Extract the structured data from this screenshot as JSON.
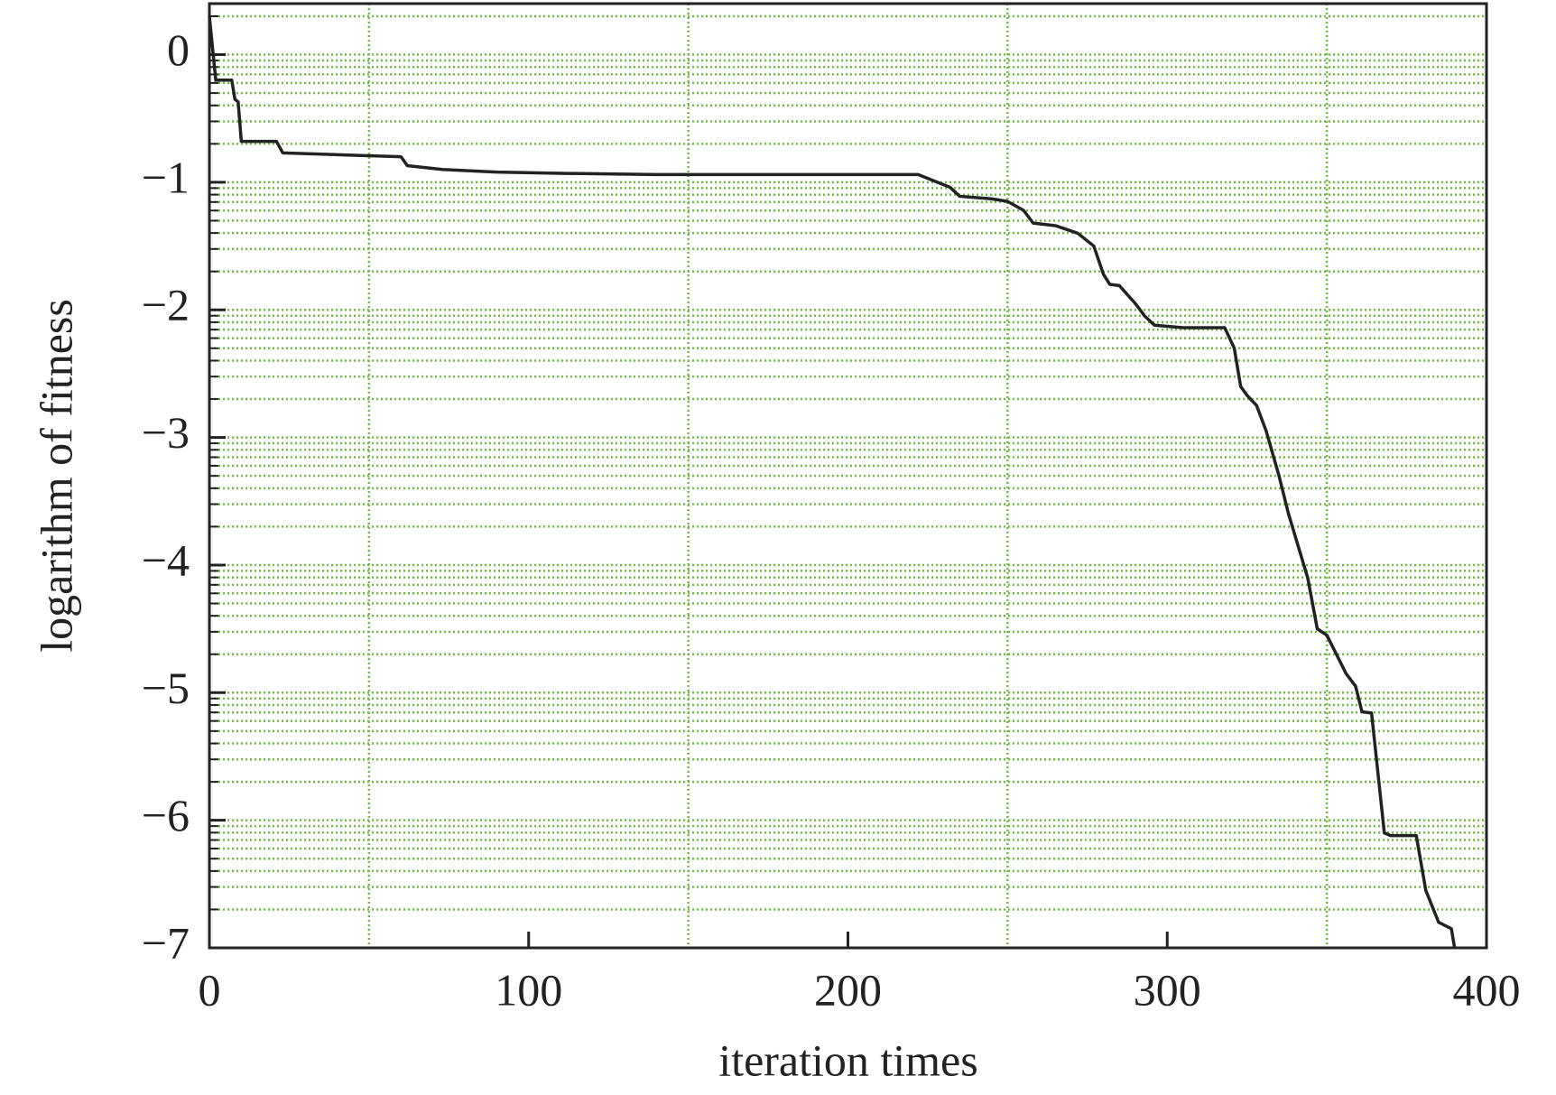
{
  "chart_data": {
    "type": "line",
    "x_label": "iteration times",
    "y_label": "logarithm of fitness",
    "xlim": [
      0,
      400
    ],
    "ylim": [
      -7,
      0.4
    ],
    "xticks": [
      0,
      100,
      200,
      300,
      400
    ],
    "yticks": [
      {
        "value": -7,
        "label": "−7"
      },
      {
        "value": -6,
        "label": "−6"
      },
      {
        "value": -5,
        "label": "−5"
      },
      {
        "value": -4,
        "label": "−4"
      },
      {
        "value": -3,
        "label": "−3"
      },
      {
        "value": -2,
        "label": "−2"
      },
      {
        "value": -1,
        "label": "−1"
      },
      0
    ],
    "x_grid": [
      50,
      150,
      250,
      350
    ],
    "y_minor_grid": "log-decade",
    "grid_color": "#6cbf3c",
    "series": [
      {
        "name": "fitness",
        "color": "#222222",
        "x": [
          0,
          2,
          7,
          8,
          9,
          10,
          21,
          23,
          35,
          60,
          62,
          73,
          90,
          110,
          140,
          222,
          228,
          232,
          235,
          245,
          250,
          255,
          258,
          265,
          272,
          277,
          280,
          282,
          285,
          290,
          293,
          296,
          305,
          318,
          321,
          323,
          325,
          328,
          331,
          335,
          338,
          341,
          344,
          347,
          350,
          353,
          356,
          359,
          361,
          364,
          368,
          370,
          378,
          381,
          385,
          389,
          390
        ],
        "values": [
          0.3,
          -0.2,
          -0.2,
          -0.35,
          -0.37,
          -0.68,
          -0.68,
          -0.77,
          -0.78,
          -0.8,
          -0.87,
          -0.9,
          -0.92,
          -0.93,
          -0.94,
          -0.94,
          -1.0,
          -1.04,
          -1.11,
          -1.13,
          -1.15,
          -1.22,
          -1.32,
          -1.34,
          -1.4,
          -1.5,
          -1.72,
          -1.8,
          -1.81,
          -1.95,
          -2.05,
          -2.12,
          -2.14,
          -2.14,
          -2.3,
          -2.6,
          -2.67,
          -2.75,
          -2.95,
          -3.3,
          -3.6,
          -3.85,
          -4.1,
          -4.5,
          -4.55,
          -4.7,
          -4.85,
          -4.95,
          -5.15,
          -5.16,
          -6.1,
          -6.12,
          -6.12,
          -6.55,
          -6.8,
          -6.85,
          -7.0
        ]
      }
    ]
  }
}
